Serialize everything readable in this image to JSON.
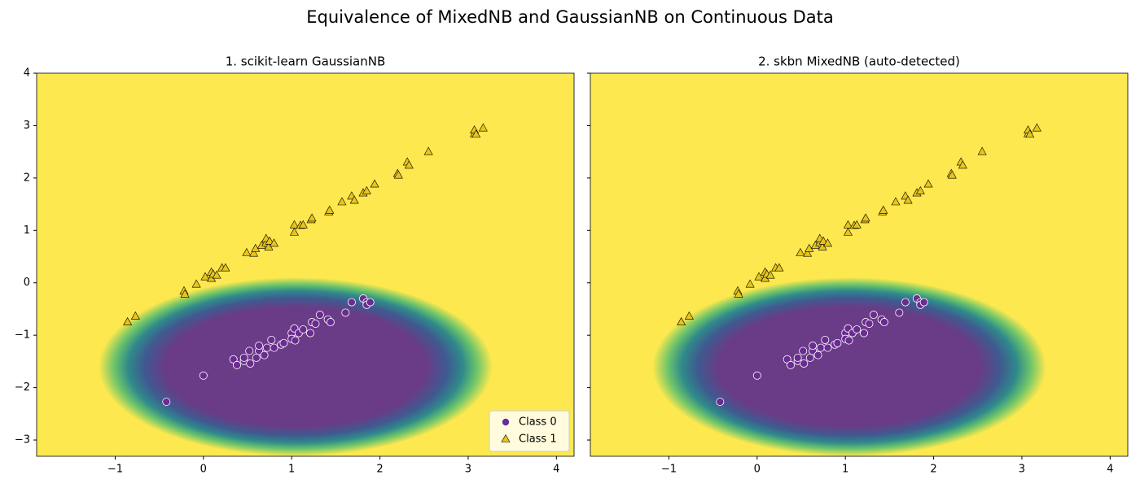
{
  "title": "Equivalence of MixedNB and GaussianNB on Continuous Data",
  "chart_data": [
    {
      "type": "scatter",
      "title": "1. scikit-learn GaussianNB",
      "legend": "lower right",
      "xlim": [
        -1.89,
        4.2
      ],
      "ylim": [
        -3.31,
        4
      ],
      "xticks": [
        {
          "value": -1,
          "label": "−1"
        },
        0,
        1,
        2,
        3,
        4
      ],
      "yticks": [
        {
          "value": -3,
          "label": "−3"
        },
        {
          "value": -2,
          "label": "−2"
        },
        {
          "value": -1,
          "label": "−1"
        },
        0,
        1,
        2,
        3,
        4
      ],
      "series": [
        {
          "name": "Class 0",
          "color": "#6a2c91",
          "marker": "circle",
          "x": [
            -0.42,
            0,
            0.34,
            0.38,
            0.46,
            0.46,
            0.52,
            0.53,
            0.6,
            0.63,
            0.63,
            0.69,
            0.72,
            0.77,
            0.8,
            0.88,
            0.91,
            1.0,
            1.0,
            1.03,
            1.04,
            1.08,
            1.13,
            1.21,
            1.23,
            1.27,
            1.32,
            1.41,
            1.44,
            1.61,
            1.68,
            1.81,
            1.85,
            1.85,
            1.89
          ],
          "y": [
            -2.27,
            -1.77,
            -1.46,
            -1.57,
            -1.49,
            -1.43,
            -1.3,
            -1.54,
            -1.43,
            -1.3,
            -1.2,
            -1.38,
            -1.24,
            -1.09,
            -1.24,
            -1.18,
            -1.15,
            -0.96,
            -1.07,
            -0.87,
            -1.1,
            -0.96,
            -0.89,
            -0.96,
            -0.75,
            -0.78,
            -0.61,
            -0.7,
            -0.75,
            -0.57,
            -0.37,
            -0.3,
            -0.37,
            -0.42,
            -0.37
          ]
        },
        {
          "name": "Class 1",
          "color": "#e8c51c",
          "marker": "triangle",
          "x": [
            -0.86,
            -0.77,
            -0.22,
            -0.21,
            -0.08,
            0.02,
            0.09,
            0.09,
            0.11,
            0.15,
            0.21,
            0.25,
            0.49,
            0.57,
            0.59,
            0.66,
            0.71,
            0.71,
            0.74,
            0.75,
            0.8,
            1.03,
            1.03,
            1.1,
            1.13,
            1.22,
            1.23,
            1.42,
            1.43,
            1.57,
            1.68,
            1.71,
            1.81,
            1.85,
            1.94,
            2.2,
            2.21,
            2.31,
            2.33,
            2.55,
            3.07,
            3.07,
            3.09,
            3.17
          ],
          "y": [
            -0.75,
            -0.64,
            -0.16,
            -0.22,
            -0.03,
            0.11,
            0.08,
            0.2,
            0.16,
            0.14,
            0.28,
            0.28,
            0.57,
            0.56,
            0.65,
            0.71,
            0.76,
            0.84,
            0.68,
            0.79,
            0.75,
            1.1,
            0.96,
            1.09,
            1.1,
            1.2,
            1.23,
            1.35,
            1.38,
            1.54,
            1.65,
            1.57,
            1.71,
            1.75,
            1.88,
            2.08,
            2.05,
            2.3,
            2.24,
            2.5,
            2.84,
            2.91,
            2.83,
            2.95
          ]
        }
      ]
    },
    {
      "type": "scatter",
      "title": "2. skbn MixedNB (auto-detected)",
      "xlim": [
        -1.89,
        4.2
      ],
      "ylim": [
        -3.31,
        4
      ],
      "xticks": [
        {
          "value": -1,
          "label": "−1"
        },
        0,
        1,
        2,
        3,
        4
      ],
      "yticks": [
        -3,
        -2,
        -1,
        0,
        1,
        2,
        3,
        4
      ],
      "series": [
        {
          "name": "Class 0",
          "color": "#6a2c91",
          "marker": "circle",
          "x": [
            -0.42,
            0,
            0.34,
            0.38,
            0.46,
            0.46,
            0.52,
            0.53,
            0.6,
            0.63,
            0.63,
            0.69,
            0.72,
            0.77,
            0.8,
            0.88,
            0.91,
            1.0,
            1.0,
            1.03,
            1.04,
            1.08,
            1.13,
            1.21,
            1.23,
            1.27,
            1.32,
            1.41,
            1.44,
            1.61,
            1.68,
            1.81,
            1.85,
            1.85,
            1.89
          ],
          "y": [
            -2.27,
            -1.77,
            -1.46,
            -1.57,
            -1.49,
            -1.43,
            -1.3,
            -1.54,
            -1.43,
            -1.3,
            -1.2,
            -1.38,
            -1.24,
            -1.09,
            -1.24,
            -1.18,
            -1.15,
            -0.96,
            -1.07,
            -0.87,
            -1.1,
            -0.96,
            -0.89,
            -0.96,
            -0.75,
            -0.78,
            -0.61,
            -0.7,
            -0.75,
            -0.57,
            -0.37,
            -0.3,
            -0.37,
            -0.42,
            -0.37
          ]
        },
        {
          "name": "Class 1",
          "color": "#e8c51c",
          "marker": "triangle",
          "x": [
            -0.86,
            -0.77,
            -0.22,
            -0.21,
            -0.08,
            0.02,
            0.09,
            0.09,
            0.11,
            0.15,
            0.21,
            0.25,
            0.49,
            0.57,
            0.59,
            0.66,
            0.71,
            0.71,
            0.74,
            0.75,
            0.8,
            1.03,
            1.03,
            1.1,
            1.13,
            1.22,
            1.23,
            1.42,
            1.43,
            1.57,
            1.68,
            1.71,
            1.81,
            1.85,
            1.94,
            2.2,
            2.21,
            2.31,
            2.33,
            2.55,
            3.07,
            3.07,
            3.09,
            3.17
          ],
          "y": [
            -0.75,
            -0.64,
            -0.16,
            -0.22,
            -0.03,
            0.11,
            0.08,
            0.2,
            0.16,
            0.14,
            0.28,
            0.28,
            0.57,
            0.56,
            0.65,
            0.71,
            0.76,
            0.84,
            0.68,
            0.79,
            0.75,
            1.1,
            0.96,
            1.09,
            1.1,
            1.2,
            1.23,
            1.35,
            1.38,
            1.54,
            1.65,
            1.57,
            1.71,
            1.75,
            1.88,
            2.08,
            2.05,
            2.3,
            2.24,
            2.5,
            2.84,
            2.91,
            2.83,
            2.95
          ]
        }
      ]
    }
  ]
}
